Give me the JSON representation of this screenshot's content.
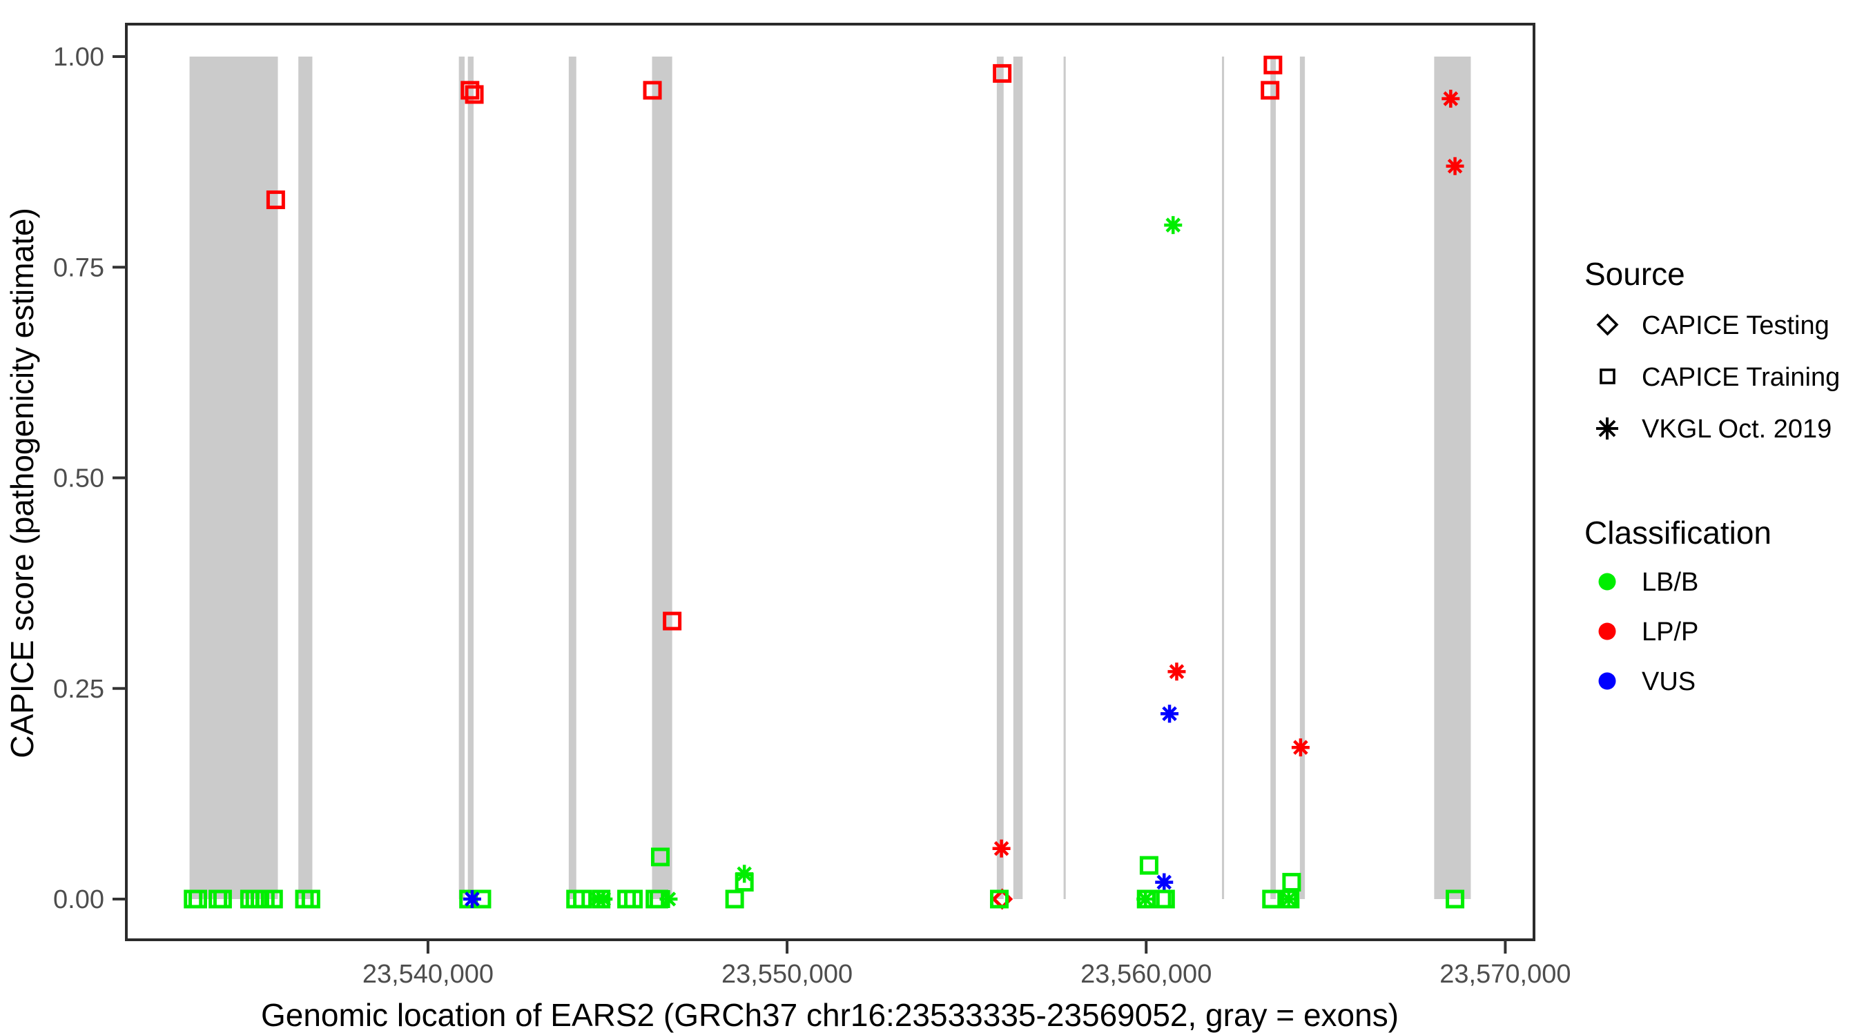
{
  "figure": {
    "x_axis": {
      "label": "Genomic location of EARS2 (GRCh37 chr16:23533335-23569052, gray = exons)",
      "domain": [
        23531600,
        23570800
      ],
      "ticks": [
        23540000,
        23550000,
        23560000,
        23570000
      ],
      "tick_labels": [
        "23,540,000",
        "23,550,000",
        "23,560,000",
        "23,570,000"
      ]
    },
    "y_axis": {
      "label": "CAPICE score (pathogenicity estimate)",
      "domain": [
        -0.048,
        1.039
      ],
      "ticks": [
        0,
        0.25,
        0.5,
        0.75,
        1
      ],
      "tick_labels": [
        "0.00",
        "0.25",
        "0.50",
        "0.75",
        "1.00"
      ]
    },
    "legend": {
      "source": {
        "title": "Source",
        "items": [
          {
            "label": "CAPICE Testing",
            "marker": "diamond"
          },
          {
            "label": "CAPICE Training",
            "marker": "square"
          },
          {
            "label": "VKGL Oct. 2019",
            "marker": "asterisk"
          }
        ]
      },
      "classification": {
        "title": "Classification",
        "items": [
          {
            "label": "LB/B",
            "color": "#00ee00"
          },
          {
            "label": "LP/P",
            "color": "#ff0000"
          },
          {
            "label": "VUS",
            "color": "#0000ff"
          }
        ]
      }
    },
    "colors": {
      "LB/B": "#00ee00",
      "LP/P": "#ff0000",
      "VUS": "#0000ff",
      "exon_gray": "#cbcbcb",
      "axis_text": "#4d4d4d",
      "panel_border": "#2b2b2b"
    }
  },
  "chart_data": {
    "type": "scatter",
    "title": "",
    "xlabel": "Genomic location of EARS2 (GRCh37 chr16:23533335-23569052, gray = exons)",
    "ylabel": "CAPICE score (pathogenicity estimate)",
    "xlim": [
      23531600,
      23570800
    ],
    "ylim": [
      0,
      1
    ],
    "grid": false,
    "legend_position": "right",
    "source_codes": {
      "test": "CAPICE Testing",
      "train": "CAPICE Training",
      "vkgl": "VKGL Oct. 2019"
    },
    "exons_note": "gray rectangles span score 0 to 1; genomic start-end pairs",
    "exons": [
      [
        23533360,
        23535820
      ],
      [
        23536390,
        23536780
      ],
      [
        23540860,
        23541020
      ],
      [
        23541110,
        23541270
      ],
      [
        23543920,
        23544130
      ],
      [
        23546240,
        23546800
      ],
      [
        23555840,
        23556030
      ],
      [
        23556300,
        23556560
      ],
      [
        23557700,
        23557760
      ],
      [
        23562110,
        23562170
      ],
      [
        23563460,
        23563610
      ],
      [
        23564280,
        23564420
      ],
      [
        23568020,
        23569040
      ]
    ],
    "point_format": [
      "genomic_position",
      "capice_score",
      "source_code",
      "classification"
    ],
    "points": [
      [
        23533460,
        0.0,
        "train",
        "LB/B"
      ],
      [
        23533590,
        0.0,
        "train",
        "LB/B"
      ],
      [
        23534150,
        0.0,
        "train",
        "LB/B"
      ],
      [
        23534280,
        0.0,
        "train",
        "LB/B"
      ],
      [
        23535030,
        0.0,
        "train",
        "LB/B"
      ],
      [
        23535180,
        0.0,
        "train",
        "LB/B"
      ],
      [
        23535320,
        0.0,
        "train",
        "LB/B"
      ],
      [
        23535470,
        0.0,
        "train",
        "LB/B"
      ],
      [
        23535700,
        0.0,
        "train",
        "LB/B"
      ],
      [
        23536560,
        0.0,
        "train",
        "LB/B"
      ],
      [
        23536740,
        0.0,
        "train",
        "LB/B"
      ],
      [
        23535760,
        0.83,
        "train",
        "LP/P"
      ],
      [
        23541170,
        0.96,
        "train",
        "LP/P"
      ],
      [
        23541290,
        0.955,
        "train",
        "LP/P"
      ],
      [
        23541130,
        0.0,
        "train",
        "LB/B"
      ],
      [
        23541500,
        0.0,
        "train",
        "LB/B"
      ],
      [
        23541230,
        0.0,
        "vkgl",
        "VUS"
      ],
      [
        23544110,
        0.0,
        "train",
        "LB/B"
      ],
      [
        23544300,
        0.0,
        "train",
        "LB/B"
      ],
      [
        23544740,
        0.0,
        "vkgl",
        "LB/B"
      ],
      [
        23544890,
        0.0,
        "vkgl",
        "LB/B"
      ],
      [
        23544820,
        0.0,
        "train",
        "LB/B"
      ],
      [
        23545530,
        0.0,
        "train",
        "LB/B"
      ],
      [
        23545720,
        0.0,
        "train",
        "LB/B"
      ],
      [
        23546320,
        0.0,
        "train",
        "LB/B"
      ],
      [
        23546430,
        0.0,
        "train",
        "LB/B"
      ],
      [
        23546700,
        0.0,
        "vkgl",
        "LB/B"
      ],
      [
        23546470,
        0.05,
        "train",
        "LB/B"
      ],
      [
        23546250,
        0.96,
        "train",
        "LP/P"
      ],
      [
        23546800,
        0.33,
        "train",
        "LP/P"
      ],
      [
        23548540,
        0.0,
        "train",
        "LB/B"
      ],
      [
        23548810,
        0.03,
        "vkgl",
        "LB/B"
      ],
      [
        23548810,
        0.02,
        "train",
        "LB/B"
      ],
      [
        23555990,
        0.98,
        "train",
        "LP/P"
      ],
      [
        23555970,
        0.06,
        "vkgl",
        "LP/P"
      ],
      [
        23555990,
        0.0,
        "test",
        "LP/P"
      ],
      [
        23555910,
        0.0,
        "train",
        "LB/B"
      ],
      [
        23560750,
        0.8,
        "vkgl",
        "LB/B"
      ],
      [
        23560850,
        0.27,
        "vkgl",
        "LP/P"
      ],
      [
        23560650,
        0.22,
        "vkgl",
        "VUS"
      ],
      [
        23560080,
        0.04,
        "train",
        "LB/B"
      ],
      [
        23560500,
        0.02,
        "vkgl",
        "VUS"
      ],
      [
        23559980,
        0.0,
        "vkgl",
        "LB/B"
      ],
      [
        23560000,
        0.0,
        "train",
        "LB/B"
      ],
      [
        23560440,
        0.0,
        "train",
        "LB/B"
      ],
      [
        23560540,
        0.0,
        "train",
        "LB/B"
      ],
      [
        23563530,
        0.99,
        "train",
        "LP/P"
      ],
      [
        23563450,
        0.96,
        "train",
        "LP/P"
      ],
      [
        23564300,
        0.18,
        "vkgl",
        "LP/P"
      ],
      [
        23563490,
        0.0,
        "train",
        "LB/B"
      ],
      [
        23564050,
        0.02,
        "train",
        "LB/B"
      ],
      [
        23563950,
        0.0,
        "train",
        "LB/B"
      ],
      [
        23564010,
        0.0,
        "train",
        "LB/B"
      ],
      [
        23563970,
        0.0,
        "vkgl",
        "LB/B"
      ],
      [
        23568480,
        0.95,
        "vkgl",
        "LP/P"
      ],
      [
        23568600,
        0.87,
        "vkgl",
        "LP/P"
      ],
      [
        23568600,
        0.0,
        "train",
        "LB/B"
      ]
    ]
  }
}
